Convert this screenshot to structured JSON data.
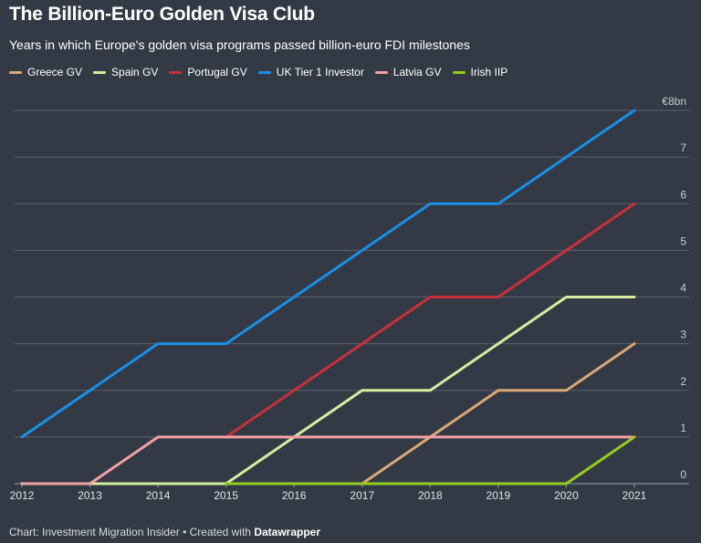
{
  "header": {
    "title": "The Billion-Euro Golden Visa Club",
    "subtitle": "Years in which Europe's golden visa programs passed billion-euro FDI milestones"
  },
  "footer": {
    "source": "Chart: Investment Migration Insider • Created with ",
    "tool": "Datawrapper"
  },
  "chart_data": {
    "type": "line",
    "x": [
      2012,
      2013,
      2014,
      2015,
      2016,
      2017,
      2018,
      2019,
      2020,
      2021
    ],
    "ylim": [
      0,
      8
    ],
    "yticks": [
      0,
      1,
      2,
      3,
      4,
      5,
      6,
      7,
      8
    ],
    "ytick_labels": [
      "0",
      "1",
      "2",
      "3",
      "4",
      "5",
      "6",
      "7",
      "€8bn"
    ],
    "xtick_labels": [
      "2012",
      "2013",
      "2014",
      "2015",
      "2016",
      "2017",
      "2018",
      "2019",
      "2020",
      "2021"
    ],
    "grid": true,
    "legend_position": "top-left",
    "series": [
      {
        "name": "Greece GV",
        "color": "#d9a878",
        "values": [
          0,
          0,
          0,
          0,
          0,
          0,
          1,
          2,
          2,
          3
        ]
      },
      {
        "name": "Spain GV",
        "color": "#d4eda0",
        "values": [
          0,
          0,
          0,
          0,
          1,
          2,
          2,
          3,
          4,
          4
        ]
      },
      {
        "name": "Portugal GV",
        "color": "#c9303d",
        "values": [
          null,
          null,
          null,
          1,
          2,
          3,
          4,
          4,
          5,
          6
        ]
      },
      {
        "name": "UK Tier 1 Investor",
        "color": "#1a8fe8",
        "values": [
          1,
          2,
          3,
          3,
          4,
          5,
          6,
          6,
          7,
          8
        ]
      },
      {
        "name": "Latvia GV",
        "color": "#f2a0a6",
        "values": [
          0,
          0,
          1,
          1,
          1,
          1,
          1,
          1,
          1,
          1
        ]
      },
      {
        "name": "Irish IIP",
        "color": "#96cc1e",
        "values": [
          null,
          null,
          null,
          0,
          0,
          0,
          0,
          0,
          0,
          1
        ]
      }
    ]
  }
}
